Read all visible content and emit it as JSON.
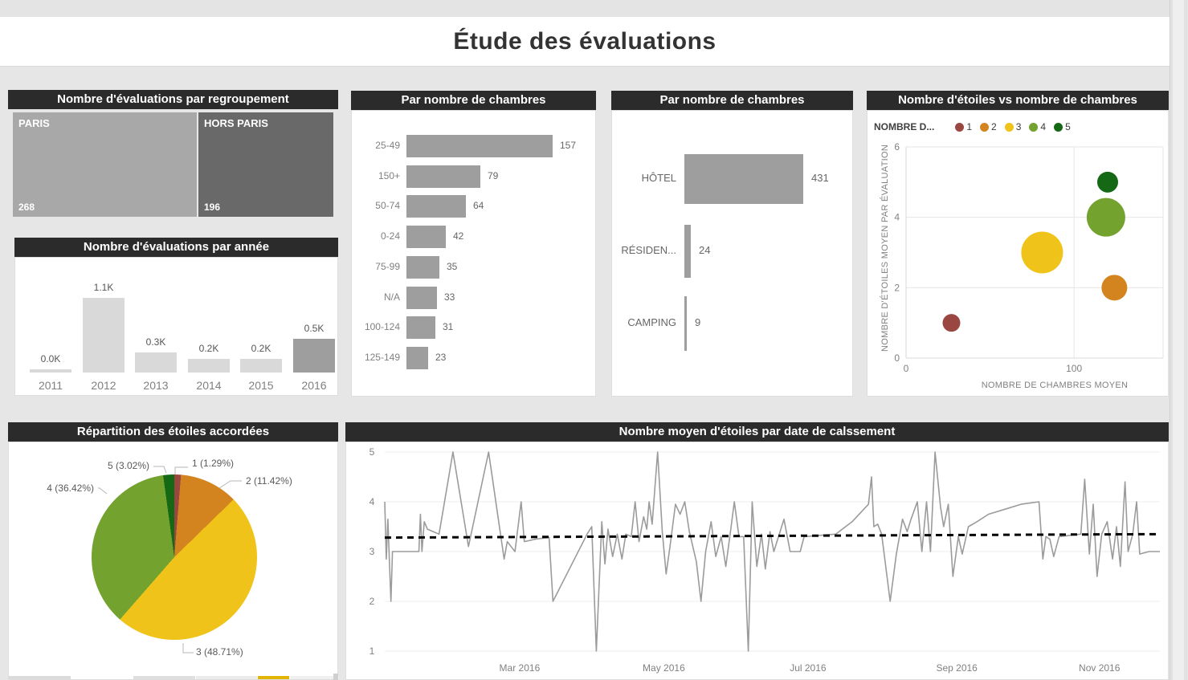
{
  "page": {
    "title": "Étude des évaluations"
  },
  "colors": {
    "page_bg": "#e6e6e6",
    "panel_bg": "#ffffff",
    "header_bg": "#2b2b2b",
    "header_text": "#ffffff",
    "bar_gray": "#9e9e9e",
    "bar_light": "#d9d9d9",
    "treemap_light": "#a8a8a8",
    "treemap_dark": "#696969",
    "line_gray": "#9b9b9b",
    "trend_black": "#000000",
    "axis_text": "#808080",
    "grid": "#ececec",
    "star_colors": {
      "1": "#9a4741",
      "2": "#d4841f",
      "3": "#efc319",
      "4": "#73a22e",
      "5": "#156915"
    }
  },
  "chart_data": [
    {
      "id": "treemap",
      "type": "treemap",
      "title": "Nombre d'évaluations par regroupement",
      "items": [
        {
          "label": "PARIS",
          "value": 268
        },
        {
          "label": "HORS PARIS",
          "value": 196
        }
      ]
    },
    {
      "id": "year",
      "type": "bar",
      "title": "Nombre d'évaluations par année",
      "categories": [
        "2011",
        "2012",
        "2013",
        "2014",
        "2015",
        "2016"
      ],
      "values": [
        30,
        1100,
        300,
        200,
        200,
        500
      ],
      "value_labels": [
        "0.0K",
        "1.1K",
        "0.3K",
        "0.2K",
        "0.2K",
        "0.5K"
      ],
      "highlight_index": 5,
      "ylim": [
        0,
        1100
      ]
    },
    {
      "id": "rooms",
      "type": "bar-horizontal",
      "title": "Par nombre de chambres",
      "categories": [
        "25-49",
        "150+",
        "50-74",
        "0-24",
        "75-99",
        "N/A",
        "100-124",
        "125-149"
      ],
      "values": [
        157,
        79,
        64,
        42,
        35,
        33,
        31,
        23
      ]
    },
    {
      "id": "type",
      "type": "bar-horizontal",
      "title": "Par nombre de chambres",
      "categories": [
        "HÔTEL",
        "RÉSIDEN...",
        "CAMPING"
      ],
      "values": [
        431,
        24,
        9
      ]
    },
    {
      "id": "scatter",
      "type": "scatter",
      "title": "Nombre d'étoiles vs nombre de chambres",
      "legend_title": "NOMBRE D...",
      "legend": [
        "1",
        "2",
        "3",
        "4",
        "5"
      ],
      "xlabel": "NOMBRE DE CHAMBRES MOYEN",
      "ylabel": "NOMBRE D'ÉTOILES MOYEN PAR ÉVALUATION",
      "xlim": [
        0,
        153
      ],
      "ylim": [
        0,
        6
      ],
      "x_ticks": [
        0,
        100
      ],
      "y_ticks": [
        0,
        2,
        4,
        6
      ],
      "points": [
        {
          "series": "1",
          "x": 27,
          "y": 1,
          "r": 11
        },
        {
          "series": "2",
          "x": 124,
          "y": 2,
          "r": 16
        },
        {
          "series": "3",
          "x": 81,
          "y": 3,
          "r": 26
        },
        {
          "series": "4",
          "x": 119,
          "y": 4,
          "r": 24
        },
        {
          "series": "5",
          "x": 120,
          "y": 5,
          "r": 13
        }
      ]
    },
    {
      "id": "pie",
      "type": "pie",
      "title": "Répartition des étoiles accordées",
      "slices": [
        {
          "label": "1",
          "pct": 1.29
        },
        {
          "label": "2",
          "pct": 11.42
        },
        {
          "label": "3",
          "pct": 48.71
        },
        {
          "label": "4",
          "pct": 36.42
        },
        {
          "label": "5",
          "pct": 3.02
        }
      ]
    },
    {
      "id": "line",
      "type": "line",
      "title": "Nombre moyen d'étoiles par date de calssement",
      "ylim": [
        1,
        5
      ],
      "y_ticks": [
        1,
        2,
        3,
        4,
        5
      ],
      "x_ticks": [
        {
          "label": "Mar 2016",
          "f": 0.174
        },
        {
          "label": "May 2016",
          "f": 0.36
        },
        {
          "label": "Jul 2016",
          "f": 0.546
        },
        {
          "label": "Sep 2016",
          "f": 0.738
        },
        {
          "label": "Nov 2016",
          "f": 0.922
        }
      ],
      "trend": {
        "start": 3.28,
        "end": 3.35
      },
      "series": [
        [
          0,
          4.0
        ],
        [
          0.002,
          2.85
        ],
        [
          0.004,
          3.65
        ],
        [
          0.006,
          2.8
        ],
        [
          0.008,
          2.0
        ],
        [
          0.01,
          3.0
        ],
        [
          0.044,
          3.0
        ],
        [
          0.046,
          3.75
        ],
        [
          0.048,
          3.0
        ],
        [
          0.051,
          3.6
        ],
        [
          0.055,
          3.45
        ],
        [
          0.07,
          3.35
        ],
        [
          0.088,
          5.0
        ],
        [
          0.108,
          3.1
        ],
        [
          0.134,
          5.0
        ],
        [
          0.154,
          2.85
        ],
        [
          0.158,
          3.2
        ],
        [
          0.168,
          3.0
        ],
        [
          0.176,
          4.0
        ],
        [
          0.18,
          3.2
        ],
        [
          0.195,
          3.25
        ],
        [
          0.212,
          3.28
        ],
        [
          0.217,
          2.0
        ],
        [
          0.261,
          3.35
        ],
        [
          0.267,
          3.5
        ],
        [
          0.273,
          1.0
        ],
        [
          0.28,
          3.6
        ],
        [
          0.284,
          2.75
        ],
        [
          0.288,
          3.45
        ],
        [
          0.294,
          2.9
        ],
        [
          0.3,
          3.35
        ],
        [
          0.306,
          2.85
        ],
        [
          0.311,
          3.35
        ],
        [
          0.318,
          3.3
        ],
        [
          0.323,
          4.0
        ],
        [
          0.328,
          3.2
        ],
        [
          0.334,
          3.7
        ],
        [
          0.338,
          3.45
        ],
        [
          0.341,
          4.0
        ],
        [
          0.345,
          3.55
        ],
        [
          0.352,
          5.0
        ],
        [
          0.358,
          3.4
        ],
        [
          0.363,
          2.55
        ],
        [
          0.368,
          3.1
        ],
        [
          0.375,
          3.95
        ],
        [
          0.381,
          3.75
        ],
        [
          0.387,
          4.0
        ],
        [
          0.393,
          3.4
        ],
        [
          0.402,
          2.8
        ],
        [
          0.408,
          2.0
        ],
        [
          0.414,
          3.0
        ],
        [
          0.421,
          3.6
        ],
        [
          0.427,
          2.9
        ],
        [
          0.434,
          3.3
        ],
        [
          0.44,
          2.7
        ],
        [
          0.446,
          3.4
        ],
        [
          0.451,
          4.0
        ],
        [
          0.457,
          3.3
        ],
        [
          0.463,
          3.3
        ],
        [
          0.469,
          1.0
        ],
        [
          0.474,
          4.0
        ],
        [
          0.48,
          2.7
        ],
        [
          0.486,
          3.35
        ],
        [
          0.491,
          2.65
        ],
        [
          0.497,
          3.4
        ],
        [
          0.502,
          3.0
        ],
        [
          0.515,
          3.65
        ],
        [
          0.523,
          3.0
        ],
        [
          0.536,
          3.0
        ],
        [
          0.541,
          3.3
        ],
        [
          0.582,
          3.35
        ],
        [
          0.603,
          3.6
        ],
        [
          0.624,
          3.95
        ],
        [
          0.628,
          4.5
        ],
        [
          0.631,
          3.5
        ],
        [
          0.636,
          3.55
        ],
        [
          0.641,
          3.35
        ],
        [
          0.652,
          2.0
        ],
        [
          0.66,
          2.95
        ],
        [
          0.668,
          3.65
        ],
        [
          0.674,
          3.4
        ],
        [
          0.679,
          3.65
        ],
        [
          0.687,
          4.0
        ],
        [
          0.693,
          3.0
        ],
        [
          0.699,
          4.0
        ],
        [
          0.704,
          3.0
        ],
        [
          0.71,
          5.0
        ],
        [
          0.717,
          3.9
        ],
        [
          0.721,
          3.5
        ],
        [
          0.727,
          3.95
        ],
        [
          0.733,
          2.5
        ],
        [
          0.74,
          3.3
        ],
        [
          0.745,
          2.95
        ],
        [
          0.753,
          3.5
        ],
        [
          0.764,
          3.6
        ],
        [
          0.779,
          3.75
        ],
        [
          0.8,
          3.85
        ],
        [
          0.821,
          3.95
        ],
        [
          0.844,
          4.0
        ],
        [
          0.849,
          2.85
        ],
        [
          0.853,
          3.3
        ],
        [
          0.858,
          3.25
        ],
        [
          0.863,
          2.9
        ],
        [
          0.87,
          3.3
        ],
        [
          0.898,
          3.35
        ],
        [
          0.903,
          4.45
        ],
        [
          0.909,
          2.95
        ],
        [
          0.914,
          3.95
        ],
        [
          0.919,
          2.5
        ],
        [
          0.925,
          3.35
        ],
        [
          0.932,
          3.6
        ],
        [
          0.939,
          2.85
        ],
        [
          0.944,
          3.5
        ],
        [
          0.949,
          2.7
        ],
        [
          0.955,
          4.4
        ],
        [
          0.959,
          3.0
        ],
        [
          0.965,
          3.35
        ],
        [
          0.97,
          4.0
        ],
        [
          0.974,
          2.95
        ],
        [
          0.986,
          3.0
        ],
        [
          1,
          3.0
        ]
      ]
    }
  ],
  "partial_strip": {
    "segments": [
      {
        "x": 0,
        "w": 77,
        "c": "#dbdbdb"
      },
      {
        "x": 155,
        "w": 77,
        "c": "#dfdfdf"
      },
      {
        "x": 233,
        "w": 76,
        "c": "#ebebeb"
      },
      {
        "x": 310,
        "w": 39,
        "c": "#e0b400"
      },
      {
        "x": 350,
        "w": 61,
        "c": "#f0f0f0"
      }
    ]
  }
}
